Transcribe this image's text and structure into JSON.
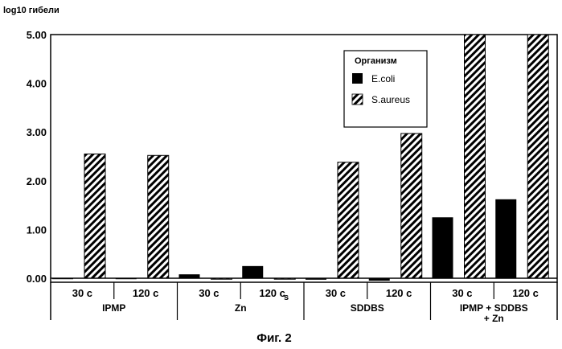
{
  "chart_data": {
    "type": "bar",
    "ylabel": "log10 гибели",
    "ylim": [
      0,
      5
    ],
    "yticks": [
      "0.00",
      "1.00",
      "2.00",
      "3.00",
      "4.00",
      "5.00"
    ],
    "groups": [
      "IPMP",
      "Zn",
      "SDDBS",
      "IPMP + SDDBS + Zn"
    ],
    "time_labels": [
      "30 с",
      "120 с",
      "30 с",
      "120 с",
      "30 с",
      "120 с",
      "30 с",
      "120 с"
    ],
    "stray_label": "s",
    "legend": {
      "title": "Организм",
      "placement": "top-right"
    },
    "series": [
      {
        "name": "E.coli",
        "pattern": "solid",
        "values": [
          0.0,
          0.0,
          0.08,
          0.25,
          -0.03,
          -0.05,
          1.25,
          1.62
        ]
      },
      {
        "name": "S.aureus",
        "pattern": "hatched",
        "values": [
          2.55,
          2.52,
          0.0,
          0.0,
          2.38,
          2.97,
          5.0,
          5.0
        ]
      }
    ],
    "caption": "Фиг. 2"
  }
}
